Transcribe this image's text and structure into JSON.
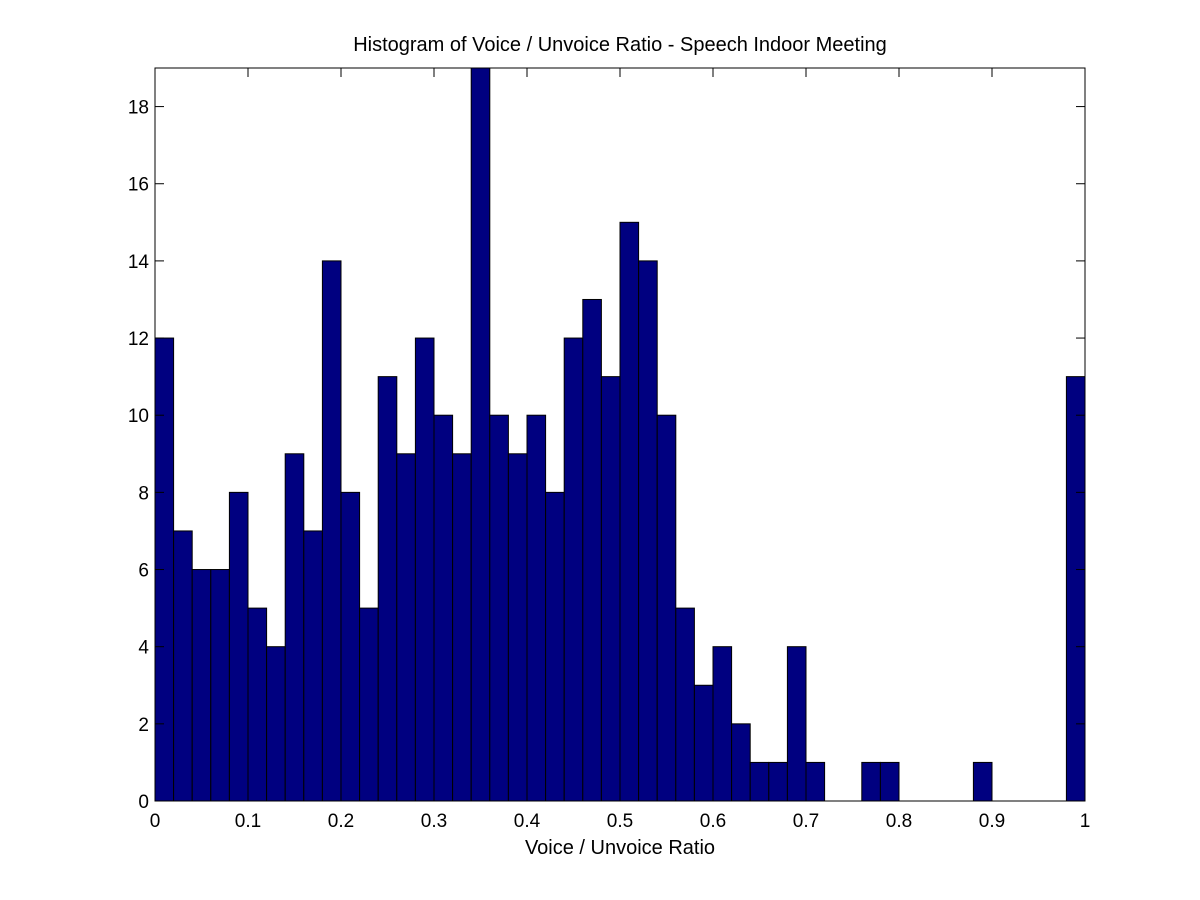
{
  "chart_data": {
    "type": "bar",
    "title": "Histogram of Voice / Unvoice Ratio - Speech Indoor Meeting",
    "xlabel": "Voice / Unvoice Ratio",
    "ylabel": "",
    "xlim": [
      0,
      1
    ],
    "ylim": [
      0,
      19
    ],
    "bin_width": 0.02,
    "bin_starts": [
      0,
      0.02,
      0.04,
      0.06,
      0.08,
      0.1,
      0.12,
      0.14,
      0.16,
      0.18,
      0.2,
      0.22,
      0.24,
      0.26,
      0.28,
      0.3,
      0.32,
      0.34,
      0.36,
      0.38,
      0.4,
      0.42,
      0.44,
      0.46,
      0.48,
      0.5,
      0.52,
      0.54,
      0.56,
      0.58,
      0.6,
      0.62,
      0.64,
      0.66,
      0.68,
      0.7,
      0.72,
      0.74,
      0.76,
      0.78,
      0.8,
      0.82,
      0.84,
      0.86,
      0.88,
      0.9,
      0.92,
      0.94,
      0.96,
      0.98
    ],
    "values": [
      12,
      7,
      6,
      6,
      8,
      5,
      4,
      9,
      7,
      14,
      8,
      5,
      11,
      9,
      12,
      10,
      9,
      19,
      10,
      9,
      10,
      8,
      12,
      13,
      11,
      15,
      14,
      10,
      5,
      3,
      4,
      2,
      1,
      1,
      4,
      1,
      0,
      0,
      1,
      1,
      0,
      0,
      0,
      0,
      1,
      0,
      0,
      0,
      0,
      11
    ],
    "x_ticks": [
      "0",
      "0.1",
      "0.2",
      "0.3",
      "0.4",
      "0.5",
      "0.6",
      "0.7",
      "0.8",
      "0.9",
      "1"
    ],
    "x_tick_values": [
      0,
      0.1,
      0.2,
      0.3,
      0.4,
      0.5,
      0.6,
      0.7,
      0.8,
      0.9,
      1
    ],
    "y_ticks": [
      "0",
      "2",
      "4",
      "6",
      "8",
      "10",
      "12",
      "14",
      "16",
      "18"
    ],
    "y_tick_values": [
      0,
      2,
      4,
      6,
      8,
      10,
      12,
      14,
      16,
      18
    ],
    "grid": false,
    "legend": "none",
    "colors": {
      "bar_fill": "#000080",
      "bar_edge": "#000000",
      "axes": "#000000",
      "background": "#ffffff"
    }
  }
}
